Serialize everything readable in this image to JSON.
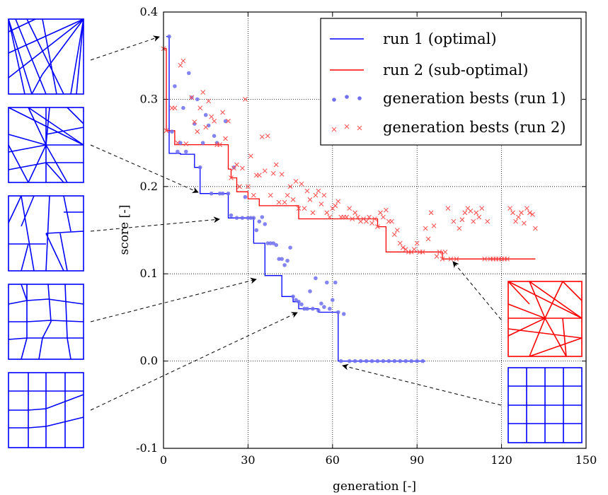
{
  "chart_data": {
    "type": "line",
    "xlabel": "generation [-]",
    "ylabel": "score [-]",
    "xlim": [
      0,
      150
    ],
    "ylim": [
      -0.1,
      0.4
    ],
    "xticks": [
      0,
      30,
      60,
      90,
      120,
      150
    ],
    "yticks": [
      -0.1,
      0.0,
      0.1,
      0.2,
      0.3,
      0.4
    ],
    "xtick_labels": [
      "0",
      "30",
      "60",
      "90",
      "120",
      "150"
    ],
    "ytick_labels": [
      "-0.1",
      "0.0",
      "0.1",
      "0.2",
      "0.3",
      "0.4"
    ],
    "grid": true,
    "legend_position": "top-right",
    "series": [
      {
        "name": "run 1 (optimal)",
        "kind": "step",
        "color": "#0000ff",
        "points": [
          [
            1,
            0.372
          ],
          [
            2,
            0.372
          ],
          [
            2,
            0.238
          ],
          [
            6,
            0.238
          ],
          [
            6,
            0.237
          ],
          [
            11,
            0.237
          ],
          [
            11,
            0.222
          ],
          [
            13,
            0.222
          ],
          [
            13,
            0.192
          ],
          [
            23,
            0.192
          ],
          [
            23,
            0.164
          ],
          [
            32,
            0.164
          ],
          [
            32,
            0.135
          ],
          [
            36,
            0.135
          ],
          [
            36,
            0.098
          ],
          [
            42,
            0.098
          ],
          [
            42,
            0.074
          ],
          [
            46,
            0.074
          ],
          [
            46,
            0.068
          ],
          [
            48,
            0.068
          ],
          [
            48,
            0.06
          ],
          [
            55,
            0.06
          ],
          [
            55,
            0.056
          ],
          [
            62,
            0.056
          ],
          [
            62,
            0.0
          ],
          [
            93,
            0.0
          ]
        ]
      },
      {
        "name": "run 2 (sub-optimal)",
        "kind": "step",
        "color": "#ff0000",
        "points": [
          [
            0,
            0.358
          ],
          [
            1,
            0.358
          ],
          [
            1,
            0.264
          ],
          [
            2,
            0.264
          ],
          [
            2,
            0.264
          ],
          [
            4,
            0.264
          ],
          [
            4,
            0.248
          ],
          [
            23,
            0.248
          ],
          [
            23,
            0.22
          ],
          [
            24,
            0.22
          ],
          [
            24,
            0.21
          ],
          [
            26,
            0.21
          ],
          [
            26,
            0.194
          ],
          [
            30,
            0.194
          ],
          [
            30,
            0.186
          ],
          [
            34,
            0.186
          ],
          [
            34,
            0.178
          ],
          [
            48,
            0.178
          ],
          [
            48,
            0.163
          ],
          [
            76,
            0.163
          ],
          [
            76,
            0.154
          ],
          [
            79,
            0.154
          ],
          [
            79,
            0.125
          ],
          [
            99,
            0.125
          ],
          [
            99,
            0.117
          ],
          [
            132,
            0.117
          ]
        ]
      },
      {
        "name": "generation bests (run 1)",
        "kind": "scatter",
        "marker": "circle",
        "color": "#7070ee",
        "points": [
          [
            2,
            0.372
          ],
          [
            3,
            0.263
          ],
          [
            4,
            0.315
          ],
          [
            5,
            0.24
          ],
          [
            6,
            0.25
          ],
          [
            7,
            0.29
          ],
          [
            8,
            0.24
          ],
          [
            9,
            0.33
          ],
          [
            10,
            0.302
          ],
          [
            11,
            0.272
          ],
          [
            12,
            0.3
          ],
          [
            13,
            0.222
          ],
          [
            14,
            0.25
          ],
          [
            15,
            0.282
          ],
          [
            16,
            0.27
          ],
          [
            17,
            0.192
          ],
          [
            18,
            0.258
          ],
          [
            19,
            0.25
          ],
          [
            20,
            0.192
          ],
          [
            21,
            0.192
          ],
          [
            22,
            0.275
          ],
          [
            23,
            0.192
          ],
          [
            24,
            0.167
          ],
          [
            25,
            0.222
          ],
          [
            26,
            0.164
          ],
          [
            28,
            0.164
          ],
          [
            29,
            0.188
          ],
          [
            30,
            0.164
          ],
          [
            31,
            0.164
          ],
          [
            32,
            0.164
          ],
          [
            33,
            0.15
          ],
          [
            34,
            0.16
          ],
          [
            35,
            0.165
          ],
          [
            36,
            0.157
          ],
          [
            37,
            0.135
          ],
          [
            38,
            0.135
          ],
          [
            39,
            0.135
          ],
          [
            40,
            0.133
          ],
          [
            41,
            0.117
          ],
          [
            42,
            0.117
          ],
          [
            43,
            0.11
          ],
          [
            44,
            0.115
          ],
          [
            45,
            0.13
          ],
          [
            46,
            0.074
          ],
          [
            47,
            0.07
          ],
          [
            48,
            0.068
          ],
          [
            49,
            0.065
          ],
          [
            50,
            0.06
          ],
          [
            51,
            0.06
          ],
          [
            52,
            0.08
          ],
          [
            53,
            0.06
          ],
          [
            54,
            0.095
          ],
          [
            55,
            0.058
          ],
          [
            56,
            0.066
          ],
          [
            57,
            0.062
          ],
          [
            58,
            0.09
          ],
          [
            59,
            0.06
          ],
          [
            60,
            0.07
          ],
          [
            61,
            0.09
          ],
          [
            62,
            0.056
          ],
          [
            63,
            0.0
          ],
          [
            64,
            0.054
          ],
          [
            66,
            0.0
          ],
          [
            68,
            0.0
          ],
          [
            70,
            0.0
          ],
          [
            72,
            0.0
          ],
          [
            74,
            0.0
          ],
          [
            76,
            0.0
          ],
          [
            78,
            0.0
          ],
          [
            80,
            0.0
          ],
          [
            82,
            0.0
          ],
          [
            84,
            0.0
          ],
          [
            86,
            0.0
          ],
          [
            88,
            0.0
          ],
          [
            90,
            0.0
          ],
          [
            92,
            0.0
          ]
        ]
      },
      {
        "name": "generation bests (run 2)",
        "kind": "scatter",
        "marker": "x",
        "color": "#ff5555",
        "points": [
          [
            0,
            0.358
          ],
          [
            1,
            0.264
          ],
          [
            3,
            0.29
          ],
          [
            4,
            0.29
          ],
          [
            5,
            0.25
          ],
          [
            6,
            0.339
          ],
          [
            7,
            0.344
          ],
          [
            8,
            0.249
          ],
          [
            10,
            0.302
          ],
          [
            11,
            0.274
          ],
          [
            12,
            0.263
          ],
          [
            13,
            0.29
          ],
          [
            14,
            0.308
          ],
          [
            15,
            0.268
          ],
          [
            16,
            0.298
          ],
          [
            17,
            0.28
          ],
          [
            18,
            0.275
          ],
          [
            19,
            0.248
          ],
          [
            20,
            0.248
          ],
          [
            21,
            0.285
          ],
          [
            22,
            0.255
          ],
          [
            23,
            0.275
          ],
          [
            24,
            0.21
          ],
          [
            25,
            0.221
          ],
          [
            26,
            0.225
          ],
          [
            27,
            0.2
          ],
          [
            28,
            0.221
          ],
          [
            29,
            0.3
          ],
          [
            30,
            0.2
          ],
          [
            31,
            0.235
          ],
          [
            32,
            0.19
          ],
          [
            33,
            0.213
          ],
          [
            34,
            0.213
          ],
          [
            35,
            0.257
          ],
          [
            36,
            0.218
          ],
          [
            37,
            0.258
          ],
          [
            38,
            0.19
          ],
          [
            39,
            0.215
          ],
          [
            40,
            0.225
          ],
          [
            41,
            0.182
          ],
          [
            42,
            0.214
          ],
          [
            43,
            0.182
          ],
          [
            44,
            0.19
          ],
          [
            45,
            0.2
          ],
          [
            46,
            0.185
          ],
          [
            47,
            0.206
          ],
          [
            48,
            0.175
          ],
          [
            49,
            0.203
          ],
          [
            50,
            0.175
          ],
          [
            51,
            0.195
          ],
          [
            52,
            0.185
          ],
          [
            53,
            0.17
          ],
          [
            54,
            0.19
          ],
          [
            55,
            0.195
          ],
          [
            56,
            0.18
          ],
          [
            57,
            0.19
          ],
          [
            58,
            0.17
          ],
          [
            59,
            0.165
          ],
          [
            60,
            0.175
          ],
          [
            61,
            0.178
          ],
          [
            62,
            0.183
          ],
          [
            63,
            0.165
          ],
          [
            64,
            0.165
          ],
          [
            65,
            0.165
          ],
          [
            66,
            0.175
          ],
          [
            67,
            0.163
          ],
          [
            68,
            0.17
          ],
          [
            69,
            0.165
          ],
          [
            70,
            0.16
          ],
          [
            71,
            0.163
          ],
          [
            72,
            0.16
          ],
          [
            73,
            0.165
          ],
          [
            74,
            0.158
          ],
          [
            75,
            0.163
          ],
          [
            76,
            0.154
          ],
          [
            77,
            0.17
          ],
          [
            78,
            0.165
          ],
          [
            79,
            0.173
          ],
          [
            80,
            0.16
          ],
          [
            81,
            0.16
          ],
          [
            82,
            0.145
          ],
          [
            83,
            0.15
          ],
          [
            84,
            0.135
          ],
          [
            85,
            0.13
          ],
          [
            86,
            0.128
          ],
          [
            87,
            0.125
          ],
          [
            88,
            0.125
          ],
          [
            89,
            0.128
          ],
          [
            90,
            0.135
          ],
          [
            91,
            0.125
          ],
          [
            92,
            0.125
          ],
          [
            93,
            0.152
          ],
          [
            94,
            0.14
          ],
          [
            95,
            0.17
          ],
          [
            96,
            0.155
          ],
          [
            97,
            0.12
          ],
          [
            98,
            0.125
          ],
          [
            99,
            0.117
          ],
          [
            100,
            0.125
          ],
          [
            101,
            0.175
          ],
          [
            102,
            0.117
          ],
          [
            103,
            0.16
          ],
          [
            104,
            0.117
          ],
          [
            105,
            0.152
          ],
          [
            106,
            0.162
          ],
          [
            107,
            0.17
          ],
          [
            108,
            0.175
          ],
          [
            109,
            0.172
          ],
          [
            110,
            0.16
          ],
          [
            111,
            0.17
          ],
          [
            112,
            0.165
          ],
          [
            113,
            0.175
          ],
          [
            114,
            0.117
          ],
          [
            115,
            0.16
          ],
          [
            116,
            0.117
          ],
          [
            117,
            0.117
          ],
          [
            118,
            0.117
          ],
          [
            119,
            0.117
          ],
          [
            120,
            0.117
          ],
          [
            121,
            0.117
          ],
          [
            122,
            0.117
          ],
          [
            123,
            0.175
          ],
          [
            124,
            0.17
          ],
          [
            125,
            0.16
          ],
          [
            126,
            0.165
          ],
          [
            127,
            0.17
          ],
          [
            128,
            0.158
          ],
          [
            129,
            0.175
          ],
          [
            130,
            0.17
          ],
          [
            131,
            0.168
          ],
          [
            132,
            0.152
          ]
        ]
      }
    ],
    "annotations": [
      {
        "target": [
          1,
          0.372
        ],
        "thumbnail": "thumb-1"
      },
      {
        "target": [
          17,
          0.192
        ],
        "thumbnail": "thumb-2"
      },
      {
        "target": [
          30,
          0.164
        ],
        "thumbnail": "thumb-3"
      },
      {
        "target": [
          37,
          0.098
        ],
        "thumbnail": "thumb-4"
      },
      {
        "target": [
          48,
          0.06
        ],
        "thumbnail": "thumb-5"
      },
      {
        "target": [
          102,
          0.117
        ],
        "thumbnail": "thumb-red"
      },
      {
        "target": [
          64,
          0.0
        ],
        "thumbnail": "thumb-grid"
      }
    ],
    "colors": {
      "run1": "#0000ff",
      "run2": "#ff0000",
      "run1_pts": "#7070ee",
      "run2_pts": "#ff5555"
    }
  }
}
